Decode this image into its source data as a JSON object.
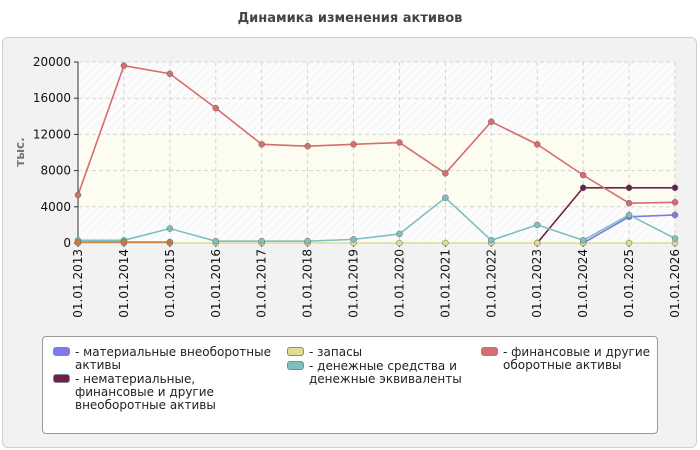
{
  "chart_data": {
    "type": "line",
    "title": "Динамика изменения активов",
    "ylabel": "тыс.",
    "xlabel": "",
    "ylim": [
      0,
      20000
    ],
    "yticks": [
      0,
      4000,
      8000,
      12000,
      16000,
      20000
    ],
    "grid": true,
    "legend_position": "bottom",
    "categories": [
      "01.01.2013",
      "01.01.2014",
      "01.01.2015",
      "01.01.2016",
      "01.01.2017",
      "01.01.2018",
      "01.01.2019",
      "01.01.2020",
      "01.01.2021",
      "01.01.2022",
      "01.01.2023",
      "01.01.2024",
      "01.01.2025",
      "01.01.2026"
    ],
    "series": [
      {
        "name": "- материальные внеоборотные активы",
        "color": "#7b7be8",
        "values": [
          null,
          null,
          null,
          null,
          null,
          null,
          null,
          null,
          null,
          null,
          null,
          0,
          2900,
          3100
        ]
      },
      {
        "name": "- нематериальные, финансовые и другие внеоборотные активы",
        "color": "#6b1f4b",
        "values": [
          null,
          null,
          null,
          null,
          null,
          null,
          null,
          null,
          null,
          null,
          0,
          6100,
          6100,
          6100
        ]
      },
      {
        "name": "- запасы",
        "color": "#dede8c",
        "values": [
          0,
          0,
          0,
          0,
          0,
          0,
          0,
          0,
          0,
          0,
          0,
          0,
          0,
          0
        ]
      },
      {
        "name": "- денежные средства и денежные эквиваленты",
        "color": "#7cc0c0",
        "values": [
          300,
          300,
          1600,
          200,
          200,
          200,
          400,
          1000,
          5000,
          300,
          2000,
          300,
          3100,
          500
        ]
      },
      {
        "name": "- финансовые и другие оборотные активы",
        "color": "#d96c6c",
        "values": [
          5300,
          19600,
          18700,
          14900,
          10900,
          10700,
          10900,
          11100,
          7700,
          13400,
          10900,
          7500,
          4400,
          4500
        ]
      },
      {
        "name": "",
        "color": "#c87a3e",
        "values": [
          100,
          100,
          100,
          null,
          null,
          null,
          null,
          null,
          null,
          null,
          null,
          null,
          null,
          null
        ]
      }
    ]
  },
  "legend": {
    "col1": [
      {
        "lines": [
          "- материальные внеоборотные",
          "активы"
        ],
        "color": "#7b7be8"
      },
      {
        "lines": [
          "- нематериальные,",
          "финансовые и другие",
          "внеоборотные активы"
        ],
        "color": "#6b1f4b"
      }
    ],
    "col2": [
      {
        "lines": [
          "- запасы"
        ],
        "color": "#dede8c"
      },
      {
        "lines": [
          "- денежные средства и",
          "денежные эквиваленты"
        ],
        "color": "#7cc0c0"
      }
    ],
    "col3": [
      {
        "lines": [
          "- финансовые и другие",
          "оборотные активы"
        ],
        "color": "#d96c6c"
      }
    ]
  }
}
